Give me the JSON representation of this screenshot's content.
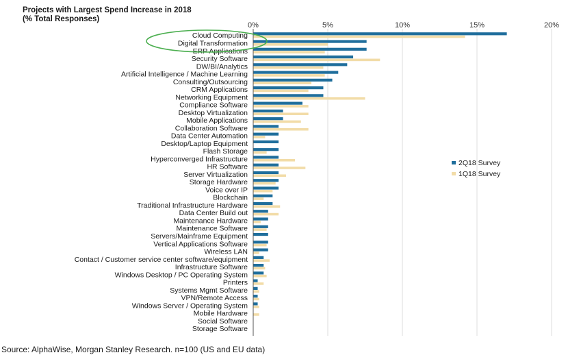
{
  "chart_data": {
    "type": "bar",
    "orientation": "horizontal",
    "title": "Projects with Largest  Spend Increase in 2018",
    "subtitle": "(% Total Responses)",
    "source": "Source: AlphaWise, Morgan Stanley Research. n=100 (US and EU data)",
    "xlim": [
      0,
      20
    ],
    "xticks": [
      "0%",
      "5%",
      "10%",
      "15%",
      "20%"
    ],
    "legend_position": "right",
    "colors": {
      "2Q18": "#1f6e9c",
      "1Q18": "#f2dca8",
      "highlight": "#4caf50",
      "grid": "#c8c8c8"
    },
    "categories": [
      "Cloud Computing",
      "Digital Transformation",
      "ERP Applications",
      "Security Software",
      "DW/BI/Analytics",
      "Artificial Intelligence / Machine Learning",
      "Consulting/Outsourcing",
      "CRM Applications",
      "Networking Equipment",
      "Compliance Software",
      "Desktop Virtualization",
      "Mobile Applications",
      "Collaboration Software",
      "Data Center Automation",
      "Desktop/Laptop Equipment",
      "Flash Storage",
      "Hyperconverged Infrastructure",
      "HR Software",
      "Server Virtualization",
      "Storage Hardware",
      "Voice over IP",
      "Blockchain",
      "Traditional Infrastructure Hardware",
      "Data Center Build out",
      "Maintenance Hardware",
      "Maintenance Software",
      "Servers/Mainframe Equipment",
      "Vertical Applications Software",
      "Wireless LAN",
      "Contact / Customer service center software/equipment",
      "Infrastructure Software",
      "Windows Desktop / PC Operating System",
      "Printers",
      "Systems Mgmt Software",
      "VPN/Remote Access",
      "Windows Server / Operating System",
      "Mobile Hardware",
      "Social Software",
      "Storage Software"
    ],
    "highlighted_categories": [
      "Cloud Computing",
      "Digital Transformation"
    ],
    "series": [
      {
        "name": "2Q18 Survey",
        "values": [
          17,
          7.6,
          7.6,
          6.7,
          6.3,
          5.7,
          5.3,
          4.7,
          4.7,
          3.3,
          2,
          2,
          1.7,
          1.7,
          1.7,
          1.7,
          1.7,
          1.7,
          1.7,
          1.7,
          1.7,
          1.3,
          1.3,
          1,
          1,
          1,
          1,
          1,
          1,
          0.7,
          0.7,
          0.7,
          0.3,
          0.3,
          0.3,
          0.3,
          0,
          0,
          0
        ]
      },
      {
        "name": "1Q18 Survey",
        "values": [
          14.2,
          5,
          4.8,
          8.5,
          4.7,
          4.8,
          3.9,
          3.7,
          7.5,
          3.7,
          3.7,
          3.2,
          3.7,
          0.8,
          0,
          0.9,
          2.8,
          3.5,
          2.2,
          1.5,
          1.3,
          0.7,
          1.8,
          1.7,
          0.5,
          0.9,
          0,
          0.9,
          0.4,
          1.1,
          0.8,
          0.9,
          0.7,
          0.4,
          0.4,
          0.4,
          0.4,
          0,
          0
        ]
      }
    ]
  }
}
